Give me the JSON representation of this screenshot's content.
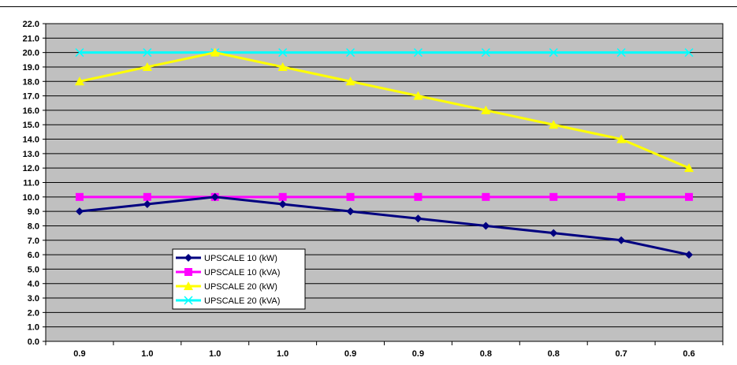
{
  "chart_data": {
    "type": "line",
    "title": "",
    "xlabel": "",
    "ylabel": "",
    "categories": [
      "0.9",
      "1.0",
      "1.0",
      "1.0",
      "0.9",
      "0.9",
      "0.8",
      "0.8",
      "0.7",
      "0.6"
    ],
    "ylim": [
      0,
      22
    ],
    "y_ticks": [
      "0.0",
      "1.0",
      "2.0",
      "3.0",
      "4.0",
      "5.0",
      "6.0",
      "7.0",
      "8.0",
      "9.0",
      "10.0",
      "11.0",
      "12.0",
      "13.0",
      "14.0",
      "15.0",
      "16.0",
      "17.0",
      "18.0",
      "19.0",
      "20.0",
      "21.0",
      "22.0"
    ],
    "grid": true,
    "plot_background": "#c0c0c0",
    "legend_position": "lower-left",
    "series": [
      {
        "name": "UPSCALE 10 (kW)",
        "values": [
          9.0,
          9.5,
          10.0,
          9.5,
          9.0,
          8.5,
          8.0,
          7.5,
          7.0,
          6.0
        ],
        "color": "#000080",
        "marker": "diamond"
      },
      {
        "name": "UPSCALE 10 (kVA)",
        "values": [
          10.0,
          10.0,
          10.0,
          10.0,
          10.0,
          10.0,
          10.0,
          10.0,
          10.0,
          10.0
        ],
        "color": "#ff00ff",
        "marker": "square"
      },
      {
        "name": "UPSCALE 20 (kW)",
        "values": [
          18.0,
          19.0,
          20.0,
          19.0,
          18.0,
          17.0,
          16.0,
          15.0,
          14.0,
          12.0
        ],
        "color": "#ffff00",
        "marker": "triangle"
      },
      {
        "name": "UPSCALE 20 (kVA)",
        "values": [
          20.0,
          20.0,
          20.0,
          20.0,
          20.0,
          20.0,
          20.0,
          20.0,
          20.0,
          20.0
        ],
        "color": "#00ffff",
        "marker": "x"
      }
    ]
  }
}
